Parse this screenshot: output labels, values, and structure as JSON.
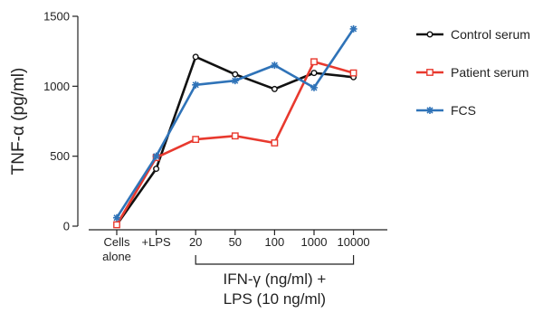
{
  "chart_data": {
    "type": "line",
    "title": "",
    "ylabel": "TNF-α (pg/ml)",
    "xlabel": "",
    "ylim": [
      0,
      1500
    ],
    "yticks": [
      0,
      500,
      1000,
      1500
    ],
    "grid": false,
    "legend_position": "right",
    "categories": [
      {
        "line1": "Cells",
        "line2": "alone"
      },
      {
        "line1": "+LPS",
        "line2": ""
      },
      {
        "line1": "20",
        "line2": ""
      },
      {
        "line1": "50",
        "line2": ""
      },
      {
        "line1": "100",
        "line2": ""
      },
      {
        "line1": "1000",
        "line2": ""
      },
      {
        "line1": "10000",
        "line2": ""
      }
    ],
    "group_annotation": {
      "from_index": 2,
      "to_index": 6,
      "line1": "IFN-γ (ng/ml) +",
      "line2": "LPS (10 ng/ml)"
    },
    "series": [
      {
        "name": "Control serum",
        "color": "#111111",
        "marker": "circle",
        "values": [
          10,
          410,
          1210,
          1085,
          980,
          1095,
          1065
        ]
      },
      {
        "name": "Patient serum",
        "color": "#e8392e",
        "marker": "square",
        "values": [
          10,
          490,
          620,
          645,
          595,
          1175,
          1095
        ]
      },
      {
        "name": "FCS",
        "color": "#2f73b8",
        "marker": "star",
        "values": [
          60,
          500,
          1010,
          1040,
          1150,
          990,
          1410
        ]
      }
    ]
  }
}
